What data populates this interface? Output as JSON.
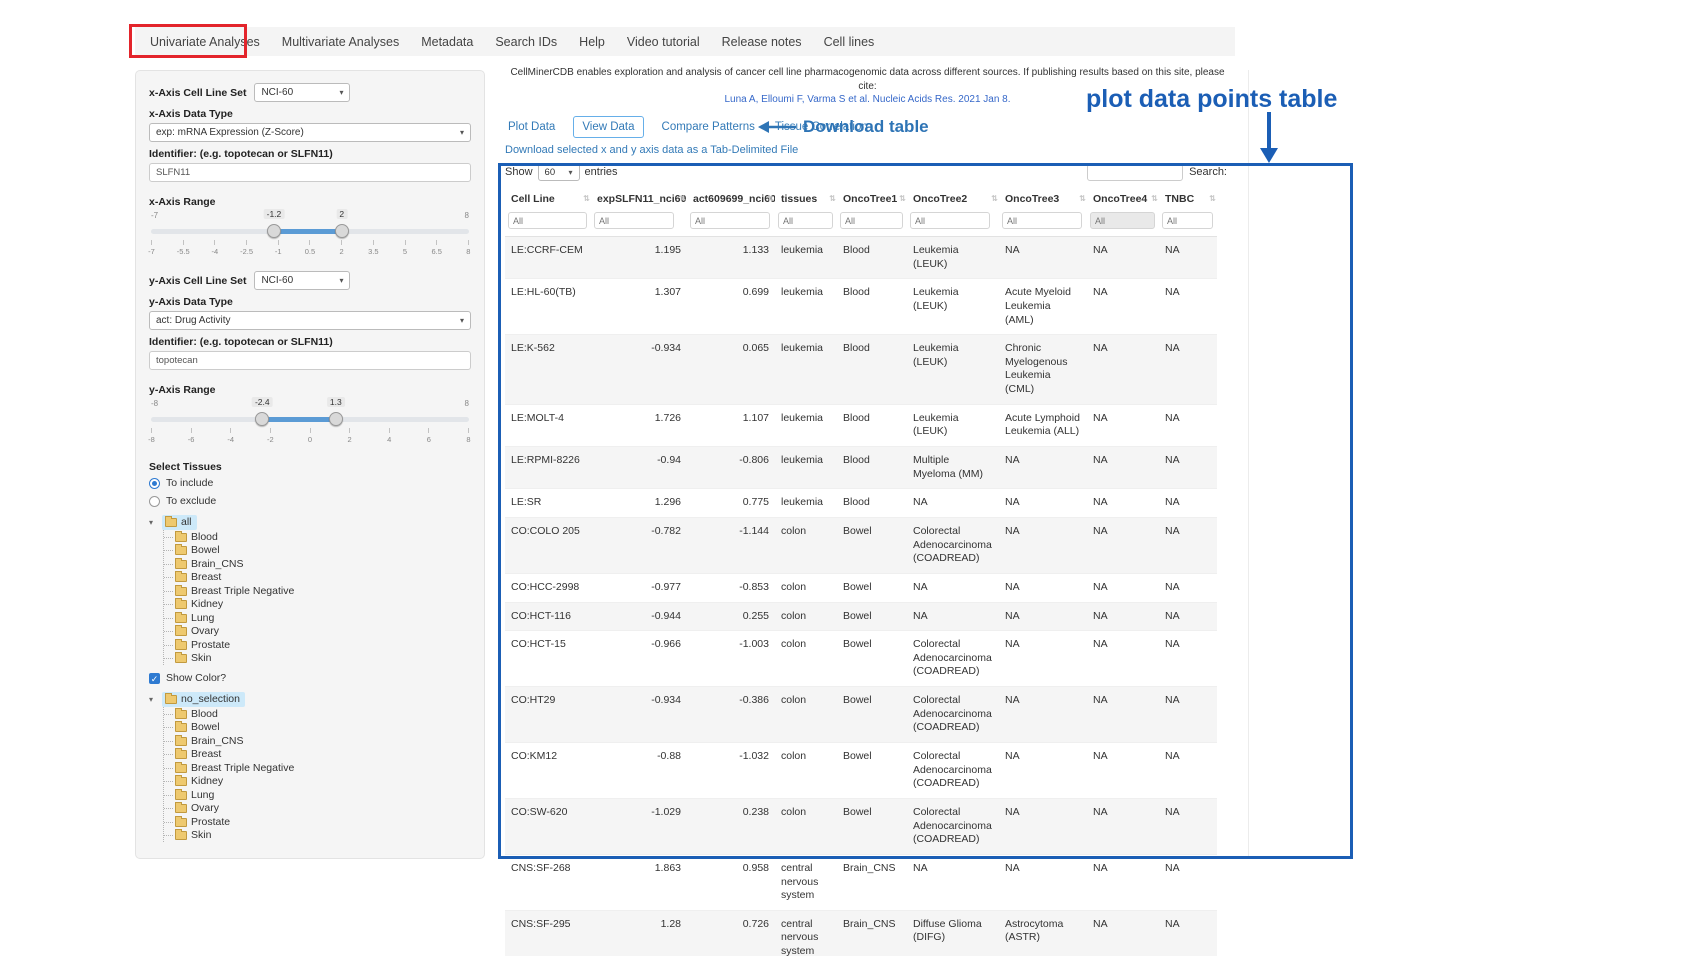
{
  "colors": {
    "link_blue": "#337ab7",
    "annotation_blue": "#1b5eb5",
    "annotation_red": "#e3242b",
    "download_arrow_blue": "#2e74b5",
    "slider_blue": "#5b9bd5",
    "tree_selected_highlight": "#cde9f9"
  },
  "nav": {
    "items": [
      "Univariate Analyses",
      "Multivariate Analyses",
      "Metadata",
      "Search IDs",
      "Help",
      "Video tutorial",
      "Release notes",
      "Cell lines"
    ]
  },
  "sidebar": {
    "x_axis": {
      "cell_line_set_label": "x-Axis Cell Line Set",
      "cell_line_set_value": "NCI-60",
      "data_type_label": "x-Axis Data Type",
      "data_type_value": "exp: mRNA Expression (Z-Score)",
      "identifier_label": "Identifier: (e.g. topotecan or SLFN11)",
      "identifier_value": "SLFN11",
      "range_label": "x-Axis Range",
      "range": {
        "min": -7,
        "max": 8,
        "low": -1.2,
        "high": 2,
        "min_label": "-7",
        "max_label": "8",
        "low_label": "-1.2",
        "high_label": "2",
        "ticks": [
          "-7",
          "-5.5",
          "-4",
          "-2.5",
          "-1",
          "0.5",
          "2",
          "3.5",
          "5",
          "6.5",
          "8"
        ]
      }
    },
    "y_axis": {
      "cell_line_set_label": "y-Axis Cell Line Set",
      "cell_line_set_value": "NCI-60",
      "data_type_label": "y-Axis Data Type",
      "data_type_value": "act: Drug Activity",
      "identifier_label": "Identifier: (e.g. topotecan or SLFN11)",
      "identifier_value": "topotecan",
      "range_label": "y-Axis Range",
      "range": {
        "min": -8,
        "max": 8,
        "low": -2.4,
        "high": 1.3,
        "min_label": "-8",
        "max_label": "8",
        "low_label": "-2.4",
        "high_label": "1.3",
        "ticks": [
          "-8",
          "-6",
          "-4",
          "-2",
          "0",
          "2",
          "4",
          "6",
          "8"
        ]
      }
    },
    "tissues": {
      "section_label": "Select Tissues",
      "include_label": "To include",
      "exclude_label": "To exclude",
      "include_selected": true,
      "show_color_label": "Show Color?",
      "show_color_checked": true,
      "include_tree_root": "all",
      "exclude_tree_root": "no_selection",
      "tree_items": [
        "Blood",
        "Bowel",
        "Brain_CNS",
        "Breast",
        "Breast Triple Negative",
        "Kidney",
        "Lung",
        "Ovary",
        "Prostate",
        "Skin"
      ]
    }
  },
  "main": {
    "citation_line1": "CellMinerCDB enables exploration and analysis of cancer cell line pharmacogenomic data across different sources. If publishing results based on this site, please cite:",
    "citation_link": "Luna A, Elloumi F, Varma S et al. Nucleic Acids Res. 2021 Jan 8.",
    "tabs": [
      "Plot Data",
      "View Data",
      "Compare Patterns",
      "Tissue Correlation"
    ],
    "active_tab": "View Data",
    "download_link": "Download selected x and y axis data as a Tab-Delimited File",
    "show_label": "Show",
    "show_value": "60",
    "entries_label": "entries",
    "search_label": "Search:",
    "search_value": "",
    "table": {
      "filter_placeholder": "All",
      "columns": [
        "Cell Line",
        "expSLFN11_nci60",
        "act609699_nci60",
        "tissues",
        "OncoTree1",
        "OncoTree2",
        "OncoTree3",
        "OncoTree4",
        "TNBC"
      ],
      "rows": [
        [
          "LE:CCRF-CEM",
          "1.195",
          "1.133",
          "leukemia",
          "Blood",
          "Leukemia (LEUK)",
          "NA",
          "NA",
          "NA"
        ],
        [
          "LE:HL-60(TB)",
          "1.307",
          "0.699",
          "leukemia",
          "Blood",
          "Leukemia (LEUK)",
          "Acute Myeloid Leukemia (AML)",
          "NA",
          "NA"
        ],
        [
          "LE:K-562",
          "-0.934",
          "0.065",
          "leukemia",
          "Blood",
          "Leukemia (LEUK)",
          "Chronic Myelogenous Leukemia (CML)",
          "NA",
          "NA"
        ],
        [
          "LE:MOLT-4",
          "1.726",
          "1.107",
          "leukemia",
          "Blood",
          "Leukemia (LEUK)",
          "Acute Lymphoid Leukemia (ALL)",
          "NA",
          "NA"
        ],
        [
          "LE:RPMI-8226",
          "-0.94",
          "-0.806",
          "leukemia",
          "Blood",
          "Multiple Myeloma (MM)",
          "NA",
          "NA",
          "NA"
        ],
        [
          "LE:SR",
          "1.296",
          "0.775",
          "leukemia",
          "Blood",
          "NA",
          "NA",
          "NA",
          "NA"
        ],
        [
          "CO:COLO 205",
          "-0.782",
          "-1.144",
          "colon",
          "Bowel",
          "Colorectal Adenocarcinoma (COADREAD)",
          "NA",
          "NA",
          "NA"
        ],
        [
          "CO:HCC-2998",
          "-0.977",
          "-0.853",
          "colon",
          "Bowel",
          "NA",
          "NA",
          "NA",
          "NA"
        ],
        [
          "CO:HCT-116",
          "-0.944",
          "0.255",
          "colon",
          "Bowel",
          "NA",
          "NA",
          "NA",
          "NA"
        ],
        [
          "CO:HCT-15",
          "-0.966",
          "-1.003",
          "colon",
          "Bowel",
          "Colorectal Adenocarcinoma (COADREAD)",
          "NA",
          "NA",
          "NA"
        ],
        [
          "CO:HT29",
          "-0.934",
          "-0.386",
          "colon",
          "Bowel",
          "Colorectal Adenocarcinoma (COADREAD)",
          "NA",
          "NA",
          "NA"
        ],
        [
          "CO:KM12",
          "-0.88",
          "-1.032",
          "colon",
          "Bowel",
          "Colorectal Adenocarcinoma (COADREAD)",
          "NA",
          "NA",
          "NA"
        ],
        [
          "CO:SW-620",
          "-1.029",
          "0.238",
          "colon",
          "Bowel",
          "Colorectal Adenocarcinoma (COADREAD)",
          "NA",
          "NA",
          "NA"
        ],
        [
          "CNS:SF-268",
          "1.863",
          "0.958",
          "central nervous system",
          "Brain_CNS",
          "NA",
          "NA",
          "NA",
          "NA"
        ],
        [
          "CNS:SF-295",
          "1.28",
          "0.726",
          "central nervous system",
          "Brain_CNS",
          "Diffuse Glioma (DIFG)",
          "Astrocytoma (ASTR)",
          "NA",
          "NA"
        ]
      ]
    }
  },
  "annotations": {
    "plot_table_label": "plot data points table",
    "download_table_label": "Download table"
  }
}
